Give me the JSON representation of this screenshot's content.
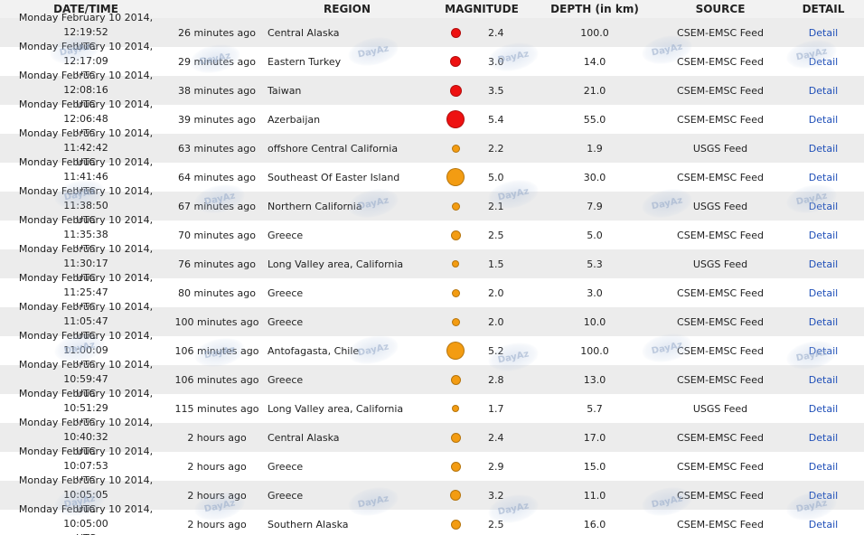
{
  "header": {
    "date_time": "DATE/TIME",
    "region": "REGION",
    "magnitude": "MAGNITUDE",
    "depth": "DEPTH (in km)",
    "source": "SOURCE",
    "detail": "DETAIL"
  },
  "colors": {
    "red": "#ee1111",
    "orange": "#f39c12",
    "link": "#1f4fb8",
    "alt_row": "#ececec"
  },
  "watermark_text": "DayAz",
  "rows": [
    {
      "date": "Monday February 10 2014, 12:19:52",
      "tz": "UTC",
      "ago": "26 minutes ago",
      "region": "Central Alaska",
      "magnitude": "2.4",
      "mag_color": "#ee1111",
      "depth": "100.0",
      "source": "CSEM-EMSC Feed",
      "detail": "Detail"
    },
    {
      "date": "Monday February 10 2014, 12:17:09",
      "tz": "UTC",
      "ago": "29 minutes ago",
      "region": "Eastern Turkey",
      "magnitude": "3.0",
      "mag_color": "#ee1111",
      "depth": "14.0",
      "source": "CSEM-EMSC Feed",
      "detail": "Detail"
    },
    {
      "date": "Monday February 10 2014, 12:08:16",
      "tz": "UTC",
      "ago": "38 minutes ago",
      "region": "Taiwan",
      "magnitude": "3.5",
      "mag_color": "#ee1111",
      "depth": "21.0",
      "source": "CSEM-EMSC Feed",
      "detail": "Detail"
    },
    {
      "date": "Monday February 10 2014, 12:06:48",
      "tz": "UTC",
      "ago": "39 minutes ago",
      "region": "Azerbaijan",
      "magnitude": "5.4",
      "mag_color": "#ee1111",
      "depth": "55.0",
      "source": "CSEM-EMSC Feed",
      "detail": "Detail"
    },
    {
      "date": "Monday February 10 2014, 11:42:42",
      "tz": "UTC",
      "ago": "63 minutes ago",
      "region": "offshore Central California",
      "magnitude": "2.2",
      "mag_color": "#f39c12",
      "depth": "1.9",
      "source": "USGS Feed",
      "detail": "Detail"
    },
    {
      "date": "Monday February 10 2014, 11:41:46",
      "tz": "UTC",
      "ago": "64 minutes ago",
      "region": "Southeast Of Easter Island",
      "magnitude": "5.0",
      "mag_color": "#f39c12",
      "depth": "30.0",
      "source": "CSEM-EMSC Feed",
      "detail": "Detail"
    },
    {
      "date": "Monday February 10 2014, 11:38:50",
      "tz": "UTC",
      "ago": "67 minutes ago",
      "region": "Northern California",
      "magnitude": "2.1",
      "mag_color": "#f39c12",
      "depth": "7.9",
      "source": "USGS Feed",
      "detail": "Detail"
    },
    {
      "date": "Monday February 10 2014, 11:35:38",
      "tz": "UTC",
      "ago": "70 minutes ago",
      "region": "Greece",
      "magnitude": "2.5",
      "mag_color": "#f39c12",
      "depth": "5.0",
      "source": "CSEM-EMSC Feed",
      "detail": "Detail"
    },
    {
      "date": "Monday February 10 2014, 11:30:17",
      "tz": "UTC",
      "ago": "76 minutes ago",
      "region": "Long Valley area, California",
      "magnitude": "1.5",
      "mag_color": "#f39c12",
      "depth": "5.3",
      "source": "USGS Feed",
      "detail": "Detail"
    },
    {
      "date": "Monday February 10 2014, 11:25:47",
      "tz": "UTC",
      "ago": "80 minutes ago",
      "region": "Greece",
      "magnitude": "2.0",
      "mag_color": "#f39c12",
      "depth": "3.0",
      "source": "CSEM-EMSC Feed",
      "detail": "Detail"
    },
    {
      "date": "Monday February 10 2014, 11:05:47",
      "tz": "UTC",
      "ago": "100 minutes ago",
      "region": "Greece",
      "magnitude": "2.0",
      "mag_color": "#f39c12",
      "depth": "10.0",
      "source": "CSEM-EMSC Feed",
      "detail": "Detail"
    },
    {
      "date": "Monday February 10 2014, 11:00:09",
      "tz": "UTC",
      "ago": "106 minutes ago",
      "region": "Antofagasta, Chile",
      "magnitude": "5.2",
      "mag_color": "#f39c12",
      "depth": "100.0",
      "source": "CSEM-EMSC Feed",
      "detail": "Detail"
    },
    {
      "date": "Monday February 10 2014, 10:59:47",
      "tz": "UTC",
      "ago": "106 minutes ago",
      "region": "Greece",
      "magnitude": "2.8",
      "mag_color": "#f39c12",
      "depth": "13.0",
      "source": "CSEM-EMSC Feed",
      "detail": "Detail"
    },
    {
      "date": "Monday February 10 2014, 10:51:29",
      "tz": "UTC",
      "ago": "115 minutes ago",
      "region": "Long Valley area, California",
      "magnitude": "1.7",
      "mag_color": "#f39c12",
      "depth": "5.7",
      "source": "USGS Feed",
      "detail": "Detail"
    },
    {
      "date": "Monday February 10 2014, 10:40:32",
      "tz": "UTC",
      "ago": "2 hours ago",
      "region": "Central Alaska",
      "magnitude": "2.4",
      "mag_color": "#f39c12",
      "depth": "17.0",
      "source": "CSEM-EMSC Feed",
      "detail": "Detail"
    },
    {
      "date": "Monday February 10 2014, 10:07:53",
      "tz": "UTC",
      "ago": "2 hours ago",
      "region": "Greece",
      "magnitude": "2.9",
      "mag_color": "#f39c12",
      "depth": "15.0",
      "source": "CSEM-EMSC Feed",
      "detail": "Detail"
    },
    {
      "date": "Monday February 10 2014, 10:05:05",
      "tz": "UTC",
      "ago": "2 hours ago",
      "region": "Greece",
      "magnitude": "3.2",
      "mag_color": "#f39c12",
      "depth": "11.0",
      "source": "CSEM-EMSC Feed",
      "detail": "Detail"
    },
    {
      "date": "Monday February 10 2014, 10:05:00",
      "tz": "UTC",
      "ago": "2 hours ago",
      "region": "Southern Alaska",
      "magnitude": "2.5",
      "mag_color": "#f39c12",
      "depth": "16.0",
      "source": "CSEM-EMSC Feed",
      "detail": "Detail"
    }
  ]
}
